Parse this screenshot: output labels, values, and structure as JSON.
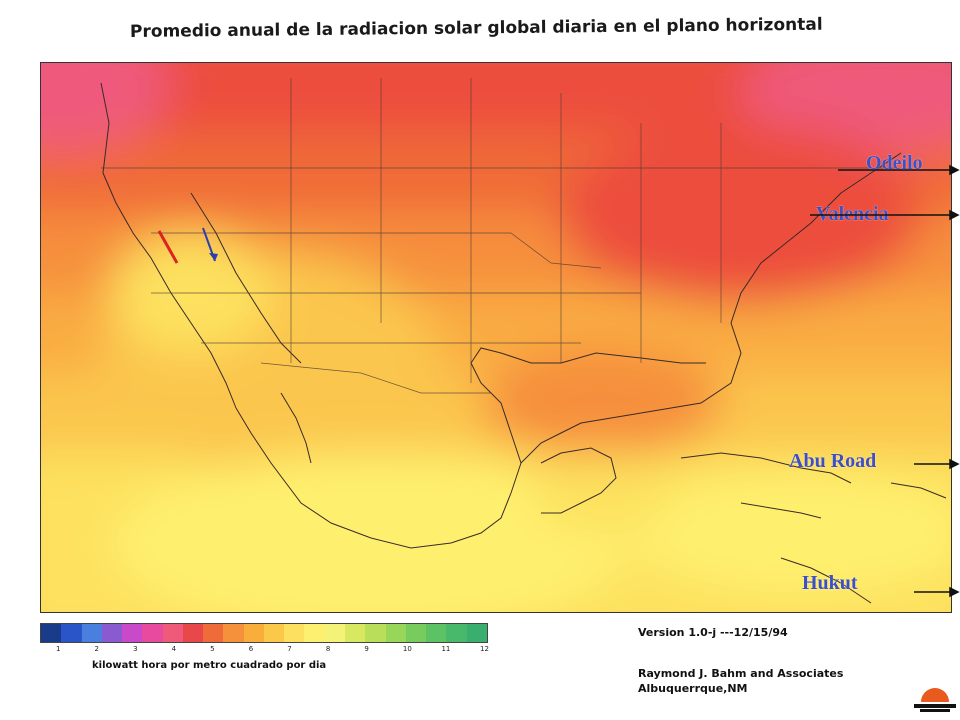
{
  "title": "Promedio anual de la radiacion solar global diaria en el plano horizontal",
  "labels": {
    "odeilo": "Odeilo",
    "valencia": "Valencia",
    "abu_road": "Abu Road",
    "hukut": "Hukut"
  },
  "legend": {
    "ticks": [
      "1",
      "2",
      "3",
      "4",
      "5",
      "6",
      "7",
      "8",
      "9",
      "10",
      "11",
      "12"
    ],
    "unit_caption": "kilowatt hora por metro cuadrado por dia",
    "colors": [
      "#1a3a8a",
      "#2a55c8",
      "#4a7fe0",
      "#8a5ad0",
      "#c84ac8",
      "#e84aa0",
      "#f05a7a",
      "#e8484a",
      "#ef6b3a",
      "#f5913a",
      "#f9ad3a",
      "#fbc84a",
      "#fde060",
      "#fdf070",
      "#f5f27a",
      "#d8e860",
      "#b8de5a",
      "#98d65a",
      "#78cc5e",
      "#5cc264",
      "#48b86a",
      "#3aae6e"
    ]
  },
  "version": "Version 1.0-j  ---12/15/94",
  "credits": {
    "line1": "Raymond J. Bahm and Associates",
    "line2": "Albuquerrque,NM"
  },
  "palette": {
    "pink": "#ef5a7c",
    "red": "#ec4e3c",
    "orange_red": "#f06a38",
    "orange": "#f68f3c",
    "light_orange": "#f9ac42",
    "yellow_orange": "#fbc64e",
    "yellow": "#fde15e",
    "pale_yellow": "#fef06e",
    "label_blue": "#3d4fc4"
  }
}
